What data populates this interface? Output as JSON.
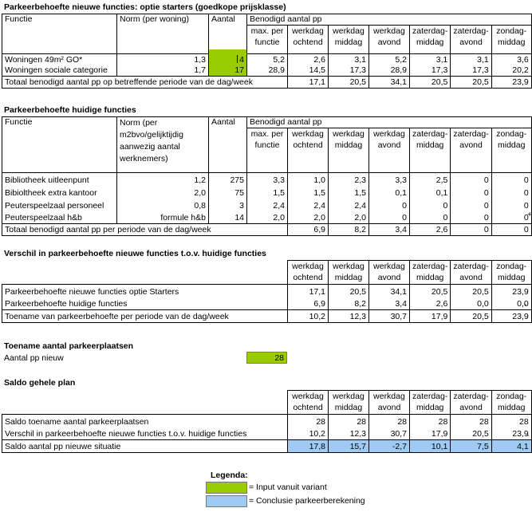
{
  "colors": {
    "input": "#99cc00",
    "conclusion": "#9fcbf3"
  },
  "s1": {
    "title": "Parkeerbehoefte nieuwe functies: optie starters (goedkope prijsklasse)",
    "h_functie": "Functie",
    "h_norm": "Norm (per woning)",
    "h_aantal": "Aantal",
    "h_benodigd": "Benodigd aantal pp",
    "periods": [
      "max. per functie",
      "werkdag ochtend",
      "werkdag middag",
      "werkdag avond",
      "zaterdag-middag",
      "zaterdag-avond",
      "zondag-middag"
    ],
    "rows": [
      {
        "functie": "Woningen 49m² GO*",
        "norm": "1,3",
        "aantal": "4",
        "values": [
          "5,2",
          "2,6",
          "3,1",
          "5,2",
          "3,1",
          "3,1",
          "3,6"
        ]
      },
      {
        "functie": "Woningen sociale categorie",
        "norm": "1,7",
        "aantal": "17",
        "values": [
          "28,9",
          "14,5",
          "17,3",
          "28,9",
          "17,3",
          "17,3",
          "20,2"
        ]
      }
    ],
    "total_label": "Totaal benodigd aantal pp op betreffende periode van de dag/week",
    "total_values": [
      "17,1",
      "20,5",
      "34,1",
      "20,5",
      "20,5",
      "23,9"
    ]
  },
  "s2": {
    "title": "Parkeerbehoefte huidige functies",
    "h_functie": "Functie",
    "h_norm": "Norm (per m2bvo/gelijktijdig aanwezig aantal werknemers)",
    "h_aantal": "Aantal",
    "h_benodigd": "Benodigd aantal pp",
    "periods": [
      "max. per functie",
      "werkdag ochtend",
      "werkdag middag",
      "werkdag avond",
      "zaterdag-middag",
      "zaterdag-avond",
      "zondag-middag"
    ],
    "rows": [
      {
        "functie": "Bibliotheek uitleenpunt",
        "norm": "1,2",
        "aantal": "275",
        "values": [
          "3,3",
          "1,0",
          "2,3",
          "3,3",
          "2,5",
          "0",
          "0"
        ]
      },
      {
        "functie": "Bibioltheek extra kantoor",
        "norm": "2,0",
        "aantal": "75",
        "values": [
          "1,5",
          "1,5",
          "1,5",
          "0,1",
          "0,1",
          "0",
          "0"
        ]
      },
      {
        "functie": "Peuterspeelzaal personeel",
        "norm": "0,8",
        "aantal": "3",
        "values": [
          "2,4",
          "2,4",
          "2,4",
          "0",
          "0",
          "0",
          "0"
        ]
      },
      {
        "functie": "Peuterspeelzaal h&b",
        "norm": "formule h&b",
        "aantal": "14",
        "values": [
          "2,0",
          "2,0",
          "2,0",
          "0",
          "0",
          "0",
          "0"
        ]
      }
    ],
    "plus": "+",
    "total_label": "Totaal benodigd aantal pp per periode van de dag/week",
    "total_values": [
      "6,9",
      "8,2",
      "3,4",
      "2,6",
      "0",
      "0"
    ]
  },
  "s3": {
    "title": "Verschil in parkeerbehoefte nieuwe functies t.o.v. huidige functies",
    "periods": [
      "werkdag ochtend",
      "werkdag middag",
      "werkdag avond",
      "zaterdag-middag",
      "zaterdag-avond",
      "zondag-middag"
    ],
    "rows": [
      {
        "label": "Parkeerbehoefte nieuwe functies optie Starters",
        "values": [
          "17,1",
          "20,5",
          "34,1",
          "20,5",
          "20,5",
          "23,9"
        ],
        "suffix": ""
      },
      {
        "label": "Parkeerbehoefte huidige functies",
        "values": [
          "6,9",
          "8,2",
          "3,4",
          "2,6",
          "0,0",
          "0,0"
        ],
        "suffix": "-"
      },
      {
        "label": "Toename van parkeerbehoefte per periode van de dag/week",
        "values": [
          "10,2",
          "12,3",
          "30,7",
          "17,9",
          "20,5",
          "23,9"
        ],
        "suffix": ""
      }
    ]
  },
  "s4": {
    "title": "Toename aantal parkeerplaatsen",
    "label": "Aantal pp nieuw",
    "value": "28"
  },
  "s5": {
    "title": "Saldo gehele plan",
    "periods": [
      "werkdag ochtend",
      "werkdag middag",
      "werkdag avond",
      "zaterdag-middag",
      "zaterdag-avond",
      "zondag-middag"
    ],
    "rows": [
      {
        "label": "Saldo toename aantal parkeerplaatsen",
        "values": [
          "28",
          "28",
          "28",
          "28",
          "28",
          "28"
        ],
        "suffix": ""
      },
      {
        "label": "Verschil in parkeerbehoefte nieuwe functies t.o.v. huidige functies",
        "values": [
          "10,2",
          "12,3",
          "30,7",
          "17,9",
          "20,5",
          "23,9"
        ],
        "suffix": "-"
      },
      {
        "label": "Saldo aantal pp nieuwe situatie",
        "values": [
          "17,8",
          "15,7",
          "-2,7",
          "10,1",
          "7,5",
          "4,1"
        ],
        "suffix": ""
      }
    ]
  },
  "legend": {
    "title": "Legenda:",
    "input": "= Input vanuit variant",
    "conclusion": "= Conclusie parkeerberekening"
  }
}
